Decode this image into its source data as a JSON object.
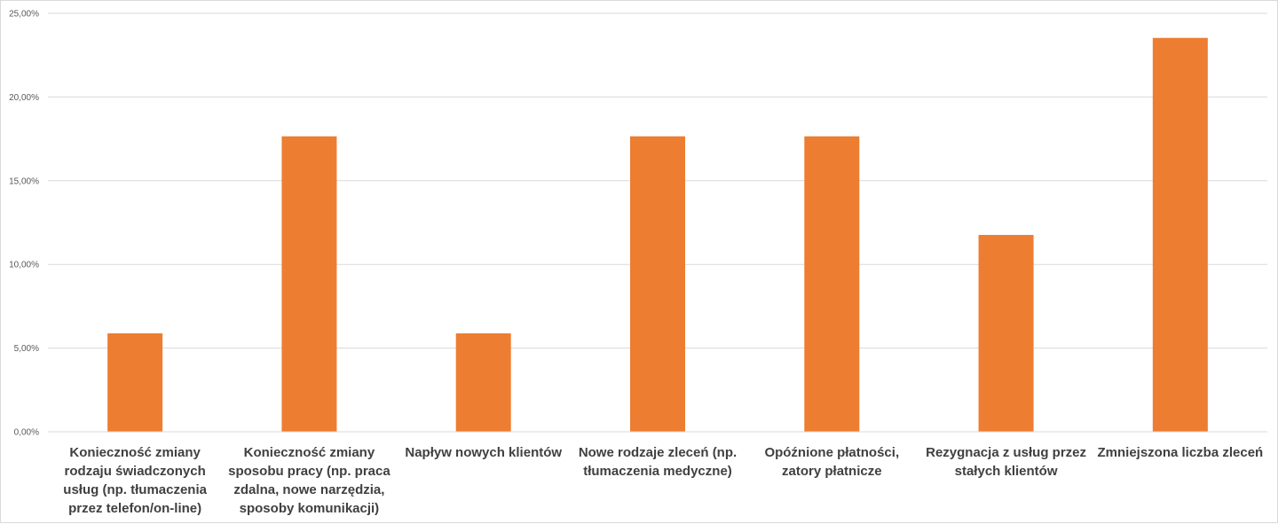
{
  "chart_data": {
    "type": "bar",
    "title": "",
    "xlabel": "",
    "ylabel": "",
    "ylim": [
      0,
      25
    ],
    "y_ticks": [
      0,
      5,
      10,
      15,
      20,
      25
    ],
    "y_tick_labels": [
      "0,00%",
      "5,00%",
      "10,00%",
      "15,00%",
      "20,00%",
      "25,00%"
    ],
    "grid": "horizontal",
    "legend": "none",
    "bar_color": "#ED7D31",
    "categories": [
      "Konieczność zmiany rodzaju świadczonych usług (np. tłumaczenia przez telefon/on-line)",
      "Konieczność zmiany sposobu pracy (np. praca zdalna, nowe narzędzia, sposoby komunikacji)",
      "Napływ nowych klientów",
      "Nowe rodzaje zleceń (np. tłumaczenia medyczne)",
      "Opóźnione płatności, zatory płatnicze",
      "Rezygnacja z usług przez stałych klientów",
      "Zmniejszona liczba zleceń"
    ],
    "category_label_lines": [
      [
        "Konieczność zmiany",
        "rodzaju świadczonych",
        "usług (np. tłumaczenia",
        "przez telefon/on-line)"
      ],
      [
        "Konieczność zmiany",
        "sposobu pracy (np. praca",
        "zdalna, nowe narzędzia,",
        "sposoby komunikacji)"
      ],
      [
        "Napływ nowych klientów"
      ],
      [
        "Nowe rodzaje zleceń (np.",
        "tłumaczenia medyczne)"
      ],
      [
        "Opóźnione płatności,",
        "zatory płatnicze"
      ],
      [
        "Rezygnacja z usług przez",
        "stałych klientów"
      ],
      [
        "Zmniejszona liczba zleceń"
      ]
    ],
    "values": [
      5.88,
      17.65,
      5.88,
      17.65,
      17.65,
      11.76,
      23.53
    ],
    "value_unit": "%"
  }
}
